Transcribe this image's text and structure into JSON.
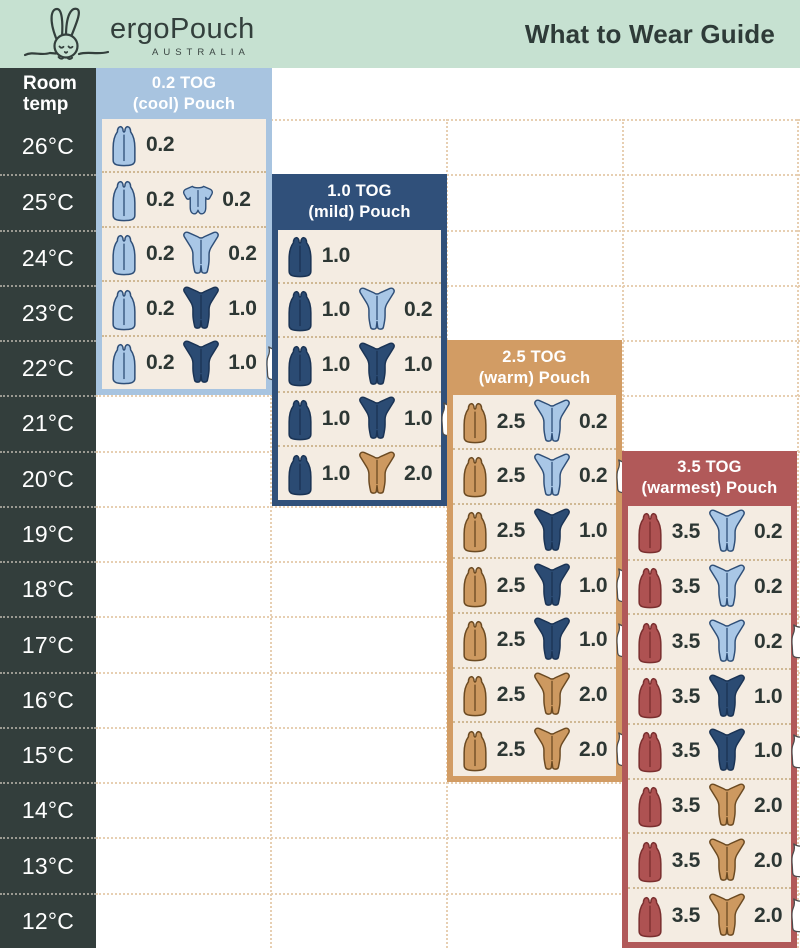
{
  "header": {
    "brand": "ergoPouch",
    "country": "AUSTRALIA",
    "title": "What to Wear Guide"
  },
  "temp_column": {
    "label_line1": "Room",
    "label_line2": "temp",
    "temps": [
      "26°C",
      "25°C",
      "24°C",
      "23°C",
      "22°C",
      "21°C",
      "20°C",
      "19°C",
      "18°C",
      "17°C",
      "16°C",
      "15°C",
      "14°C",
      "13°C",
      "12°C"
    ]
  },
  "colors": {
    "banner_mint": "#c6e1d1",
    "charcoal": "#333e3c",
    "panel_cream": "#f4ece2",
    "grid_dots": "#e7cfb2",
    "value_text": "#2d3734"
  },
  "icon_colors": {
    "blue": {
      "fill": "#a9c7e6",
      "stroke": "#2f4f78"
    },
    "navy": {
      "fill": "#2b4b73",
      "stroke": "#1a3354"
    },
    "tan": {
      "fill": "#cd9960",
      "stroke": "#6b4a22"
    },
    "maroon": {
      "fill": "#ae5252",
      "stroke": "#7a2f2f"
    },
    "white": {
      "fill": "#ffffff",
      "stroke": "#4d4d4d"
    }
  },
  "panels": [
    {
      "name": "0.2 TOG (cool) Pouch",
      "title_line1": "0.2 TOG",
      "title_line2": "(cool) Pouch",
      "color": "#a8c4e0",
      "rows": [
        {
          "temp": "26°C",
          "items": [
            {
              "type": "pouch",
              "color": "blue",
              "tog": "0.2"
            }
          ]
        },
        {
          "temp": "25°C",
          "items": [
            {
              "type": "pouch",
              "color": "blue",
              "tog": "0.2"
            },
            {
              "type": "romper",
              "color": "blue",
              "tog": "0.2"
            }
          ]
        },
        {
          "temp": "24°C",
          "items": [
            {
              "type": "pouch",
              "color": "blue",
              "tog": "0.2"
            },
            {
              "type": "sleepsuit",
              "color": "blue",
              "tog": "0.2"
            }
          ]
        },
        {
          "temp": "23°C",
          "items": [
            {
              "type": "pouch",
              "color": "blue",
              "tog": "0.2"
            },
            {
              "type": "sleepsuit",
              "color": "navy",
              "tog": "1.0"
            }
          ]
        },
        {
          "temp": "22°C",
          "items": [
            {
              "type": "pouch",
              "color": "blue",
              "tog": "0.2"
            },
            {
              "type": "sleepsuit",
              "color": "navy",
              "tog": "1.0"
            },
            {
              "type": "singlet",
              "color": "white"
            }
          ]
        }
      ]
    },
    {
      "name": "1.0 TOG (mild) Pouch",
      "title_line1": "1.0 TOG",
      "title_line2": "(mild) Pouch",
      "color": "#30507a",
      "rows": [
        {
          "temp": "24°C",
          "items": [
            {
              "type": "pouch",
              "color": "navy",
              "tog": "1.0"
            }
          ]
        },
        {
          "temp": "23°C",
          "items": [
            {
              "type": "pouch",
              "color": "navy",
              "tog": "1.0"
            },
            {
              "type": "sleepsuit",
              "color": "blue",
              "tog": "0.2"
            }
          ]
        },
        {
          "temp": "22°C",
          "items": [
            {
              "type": "pouch",
              "color": "navy",
              "tog": "1.0"
            },
            {
              "type": "sleepsuit",
              "color": "navy",
              "tog": "1.0"
            }
          ]
        },
        {
          "temp": "21°C",
          "items": [
            {
              "type": "pouch",
              "color": "navy",
              "tog": "1.0"
            },
            {
              "type": "sleepsuit",
              "color": "navy",
              "tog": "1.0"
            },
            {
              "type": "singlet",
              "color": "white"
            }
          ]
        },
        {
          "temp": "20°C",
          "items": [
            {
              "type": "pouch",
              "color": "navy",
              "tog": "1.0"
            },
            {
              "type": "sleepsuit",
              "color": "tan",
              "tog": "2.0"
            }
          ]
        }
      ]
    },
    {
      "name": "2.5 TOG (warm) Pouch",
      "title_line1": "2.5 TOG",
      "title_line2": "(warm) Pouch",
      "color": "#d29c64",
      "rows": [
        {
          "temp": "21°C",
          "items": [
            {
              "type": "pouch",
              "color": "tan",
              "tog": "2.5"
            },
            {
              "type": "sleepsuit",
              "color": "blue",
              "tog": "0.2"
            }
          ]
        },
        {
          "temp": "20°C",
          "items": [
            {
              "type": "pouch",
              "color": "tan",
              "tog": "2.5"
            },
            {
              "type": "sleepsuit",
              "color": "blue",
              "tog": "0.2"
            },
            {
              "type": "singlet",
              "color": "white"
            }
          ]
        },
        {
          "temp": "19°C",
          "items": [
            {
              "type": "pouch",
              "color": "tan",
              "tog": "2.5"
            },
            {
              "type": "sleepsuit",
              "color": "navy",
              "tog": "1.0"
            }
          ]
        },
        {
          "temp": "18°C",
          "items": [
            {
              "type": "pouch",
              "color": "tan",
              "tog": "2.5"
            },
            {
              "type": "sleepsuit",
              "color": "navy",
              "tog": "1.0"
            },
            {
              "type": "singlet",
              "color": "white"
            }
          ]
        },
        {
          "temp": "17°C",
          "items": [
            {
              "type": "pouch",
              "color": "tan",
              "tog": "2.5"
            },
            {
              "type": "sleepsuit",
              "color": "navy",
              "tog": "1.0"
            },
            {
              "type": "singlet",
              "color": "white"
            }
          ]
        },
        {
          "temp": "16°C",
          "items": [
            {
              "type": "pouch",
              "color": "tan",
              "tog": "2.5"
            },
            {
              "type": "sleepsuit",
              "color": "tan",
              "tog": "2.0"
            }
          ]
        },
        {
          "temp": "15°C",
          "items": [
            {
              "type": "pouch",
              "color": "tan",
              "tog": "2.5"
            },
            {
              "type": "sleepsuit",
              "color": "tan",
              "tog": "2.0"
            },
            {
              "type": "singlet",
              "color": "white"
            }
          ]
        }
      ]
    },
    {
      "name": "3.5 TOG (warmest) Pouch",
      "title_line1": "3.5 TOG",
      "title_line2": "(warmest) Pouch",
      "color": "#b15959",
      "rows": [
        {
          "temp": "19°C",
          "items": [
            {
              "type": "pouch",
              "color": "maroon",
              "tog": "3.5"
            },
            {
              "type": "sleepsuit",
              "color": "blue",
              "tog": "0.2"
            }
          ]
        },
        {
          "temp": "18°C",
          "items": [
            {
              "type": "pouch",
              "color": "maroon",
              "tog": "3.5"
            },
            {
              "type": "sleepsuit",
              "color": "blue",
              "tog": "0.2"
            }
          ]
        },
        {
          "temp": "17°C",
          "items": [
            {
              "type": "pouch",
              "color": "maroon",
              "tog": "3.5"
            },
            {
              "type": "sleepsuit",
              "color": "blue",
              "tog": "0.2"
            },
            {
              "type": "singlet",
              "color": "white"
            }
          ]
        },
        {
          "temp": "16°C",
          "items": [
            {
              "type": "pouch",
              "color": "maroon",
              "tog": "3.5"
            },
            {
              "type": "sleepsuit",
              "color": "navy",
              "tog": "1.0"
            }
          ]
        },
        {
          "temp": "15°C",
          "items": [
            {
              "type": "pouch",
              "color": "maroon",
              "tog": "3.5"
            },
            {
              "type": "sleepsuit",
              "color": "navy",
              "tog": "1.0"
            },
            {
              "type": "singlet",
              "color": "white"
            }
          ]
        },
        {
          "temp": "14°C",
          "items": [
            {
              "type": "pouch",
              "color": "maroon",
              "tog": "3.5"
            },
            {
              "type": "sleepsuit",
              "color": "tan",
              "tog": "2.0"
            }
          ]
        },
        {
          "temp": "13°C",
          "items": [
            {
              "type": "pouch",
              "color": "maroon",
              "tog": "3.5"
            },
            {
              "type": "sleepsuit",
              "color": "tan",
              "tog": "2.0"
            },
            {
              "type": "singlet",
              "color": "white"
            }
          ]
        },
        {
          "temp": "12°C",
          "items": [
            {
              "type": "pouch",
              "color": "maroon",
              "tog": "3.5"
            },
            {
              "type": "sleepsuit",
              "color": "tan",
              "tog": "2.0"
            },
            {
              "type": "singlet",
              "color": "white"
            }
          ]
        }
      ]
    }
  ]
}
